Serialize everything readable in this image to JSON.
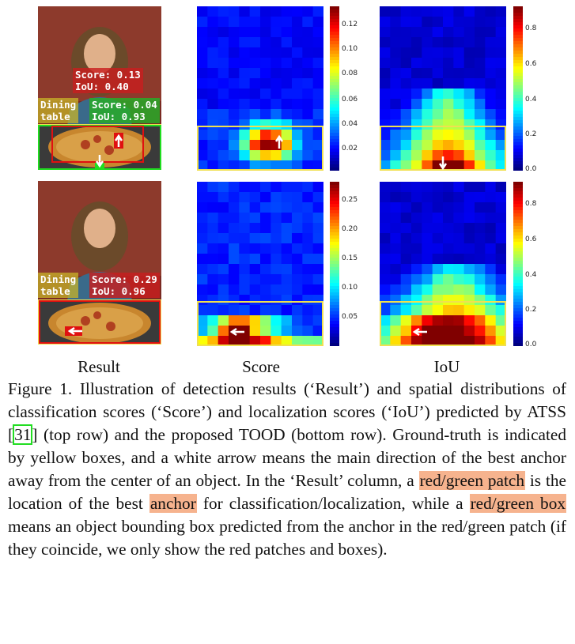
{
  "columns": [
    "Result",
    "Score",
    "IoU"
  ],
  "rows": [
    {
      "name": "ATSS",
      "labels": {
        "red": "Score: 0.13\nIoU: 0.40",
        "green": "Score: 0.04\nIoU: 0.93",
        "class": "Dining\ntable"
      },
      "score_cbar": {
        "ticks": [
          "0.12",
          "0.10",
          "0.08",
          "0.06",
          "0.04",
          "0.02"
        ]
      },
      "iou_cbar": {
        "ticks": [
          "0.8",
          "0.6",
          "0.4",
          "0.2",
          "0.0"
        ]
      },
      "score_arrow": "up",
      "iou_arrow": "down"
    },
    {
      "name": "TOOD",
      "labels": {
        "red": "Score: 0.29\nIoU: 0.96",
        "class": "Dining\ntable"
      },
      "score_cbar": {
        "ticks": [
          "0.25",
          "0.20",
          "0.15",
          "0.10",
          "0.05"
        ]
      },
      "iou_cbar": {
        "ticks": [
          "0.8",
          "0.6",
          "0.4",
          "0.2",
          "0.0"
        ]
      },
      "score_arrow": "left",
      "iou_arrow": "left"
    }
  ],
  "caption": {
    "p1": "Figure 1. Illustration of detection results (‘Result’) and spatial distributions of classification scores (‘Score’) and localization scores (‘IoU’) predicted by ATSS ",
    "ref": "31",
    "p2": " (top row) and the proposed TOOD (bottom row). Ground-truth is indicated by yellow boxes, and a white arrow means the main direction of the best anchor away from the center of an object. In the ‘Result’ column, a ",
    "hl1": "red/green patch",
    "p3": " is the location of the best ",
    "hl2": "anchor",
    "p4": " for classification/localization, while a ",
    "hl3": "red/green box",
    "p5": " means an object bounding box predicted from the anchor in the red/green patch (if they coincide, we only show the red patches and boxes)."
  },
  "colors": {
    "ground_truth": "#f0e050",
    "red_patch": "#e01010",
    "green_patch": "#20dd20",
    "highlight": "#f6b38e"
  }
}
